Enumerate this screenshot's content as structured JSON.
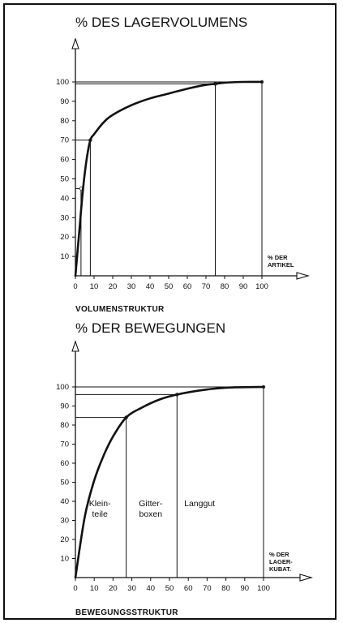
{
  "chart_data": [
    {
      "type": "line",
      "title": "% DES LAGERVOLUMENS",
      "axis_note_lines": [
        "% DER",
        "ARTIKEL"
      ],
      "caption": "VOLUMENSTRUKTUR",
      "x_ticks": [
        0,
        10,
        20,
        30,
        40,
        50,
        60,
        70,
        80,
        90,
        100
      ],
      "y_ticks": [
        10,
        20,
        30,
        40,
        50,
        60,
        70,
        80,
        90,
        100
      ],
      "xlim": [
        0,
        100
      ],
      "ylim": [
        0,
        100
      ],
      "series": [
        {
          "x": [
            0,
            2,
            4,
            6,
            8,
            10,
            15,
            20,
            30,
            40,
            50,
            60,
            70,
            75,
            80,
            90,
            100
          ],
          "y": [
            0,
            22,
            44,
            60,
            70,
            73,
            79,
            83,
            88,
            91.5,
            94,
            96.5,
            98.5,
            99,
            99.6,
            100,
            100
          ]
        }
      ],
      "reference_points": [
        {
          "x": 3,
          "y": 45
        },
        {
          "x": 8,
          "y": 70
        },
        {
          "x": 75,
          "y": 99
        },
        {
          "x": 100,
          "y": 100
        }
      ]
    },
    {
      "type": "line",
      "title": "% DER BEWEGUNGEN",
      "axis_note_lines": [
        "% DER",
        "LAGER-",
        "KUBAT."
      ],
      "caption": "BEWEGUNGSSTRUKTUR",
      "x_ticks": [
        0,
        10,
        20,
        30,
        40,
        50,
        60,
        70,
        80,
        90,
        100
      ],
      "y_ticks": [
        10,
        20,
        30,
        40,
        50,
        60,
        70,
        80,
        90,
        100
      ],
      "xlim": [
        0,
        100
      ],
      "ylim": [
        0,
        100
      ],
      "series": [
        {
          "x": [
            0,
            5,
            10,
            15,
            20,
            27,
            35,
            45,
            54,
            65,
            75,
            85,
            100
          ],
          "y": [
            0,
            32,
            51,
            64,
            74,
            84,
            89,
            93.5,
            96,
            98,
            99.2,
            99.8,
            100
          ]
        }
      ],
      "reference_points": [
        {
          "x": 27,
          "y": 84
        },
        {
          "x": 54,
          "y": 96
        },
        {
          "x": 100,
          "y": 100
        }
      ],
      "region_labels": [
        {
          "lines": [
            "Klein-",
            "teile"
          ],
          "x_center": 13
        },
        {
          "lines": [
            "Gitter-",
            "boxen"
          ],
          "x_center": 40
        },
        {
          "lines": [
            "Langgut"
          ],
          "x_center": 66
        }
      ]
    }
  ]
}
